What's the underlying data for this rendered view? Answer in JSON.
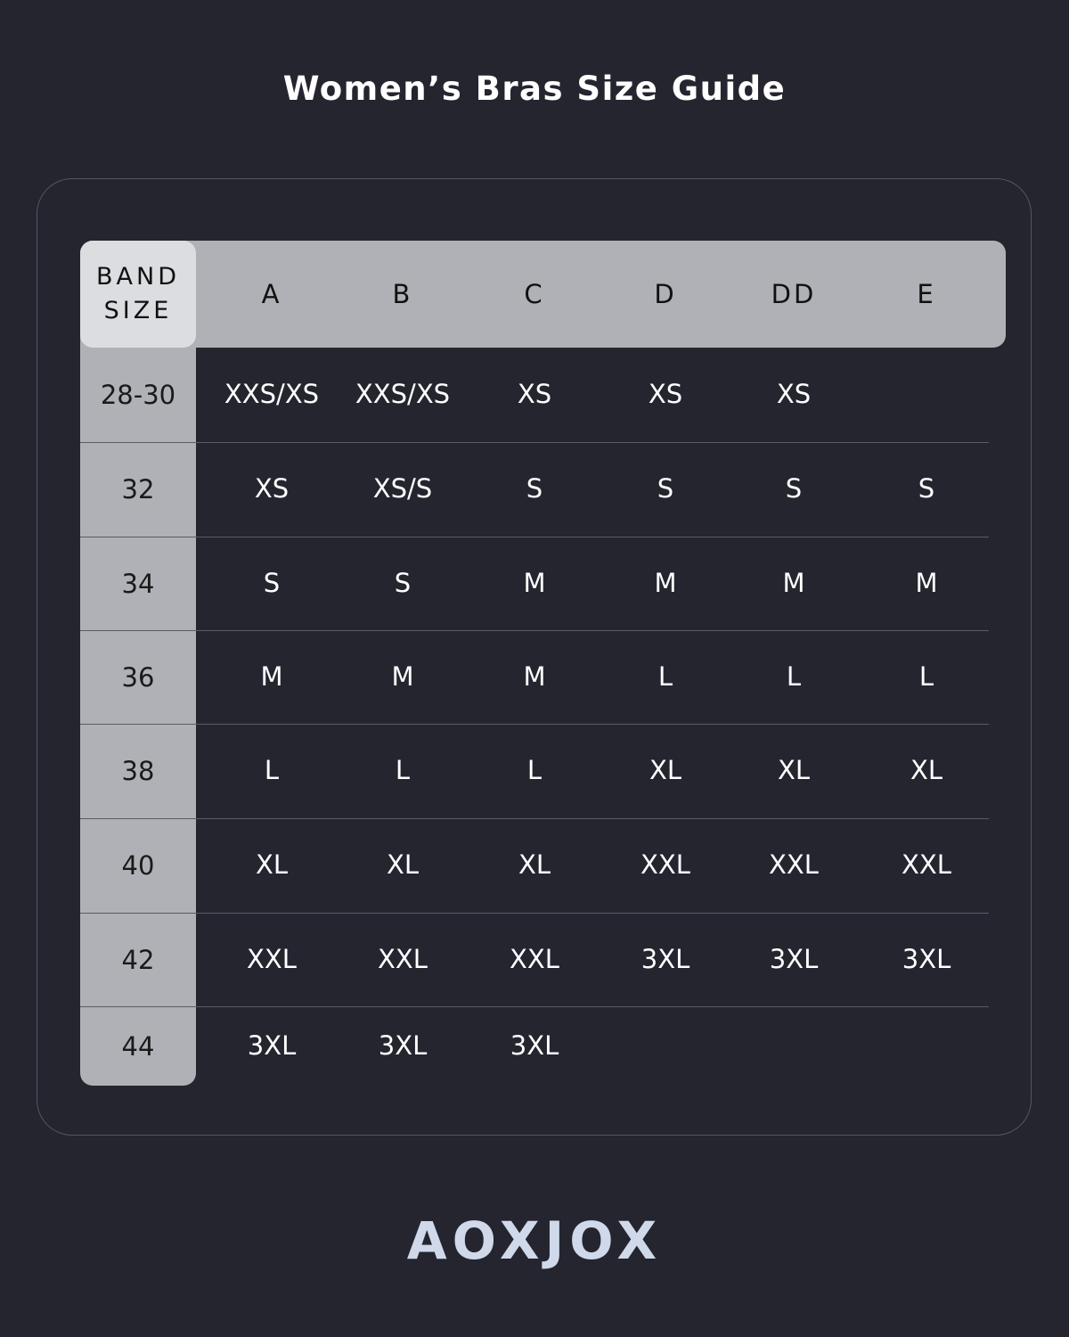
{
  "title": "Women’s Bras Size Guide",
  "table": {
    "band_header": [
      "BAND",
      "SIZE"
    ],
    "cup_headers": [
      "A",
      "B",
      "C",
      "D",
      "DD",
      "E"
    ],
    "rows": [
      {
        "band": "28-30",
        "cells": [
          "XXS/XS",
          "XXS/XS",
          "XS",
          "XS",
          "XS",
          ""
        ]
      },
      {
        "band": "32",
        "cells": [
          "XS",
          "XS/S",
          "S",
          "S",
          "S",
          "S"
        ]
      },
      {
        "band": "34",
        "cells": [
          "S",
          "S",
          "M",
          "M",
          "M",
          "M"
        ]
      },
      {
        "band": "36",
        "cells": [
          "M",
          "M",
          "M",
          "L",
          "L",
          "L"
        ]
      },
      {
        "band": "38",
        "cells": [
          "L",
          "L",
          "L",
          "XL",
          "XL",
          "XL"
        ]
      },
      {
        "band": "40",
        "cells": [
          "XL",
          "XL",
          "XL",
          "XXL",
          "XXL",
          "XXL"
        ]
      },
      {
        "band": "42",
        "cells": [
          "XXL",
          "XXL",
          "XXL",
          "3XL",
          "3XL",
          "3XL"
        ]
      },
      {
        "band": "44",
        "cells": [
          "3XL",
          "3XL",
          "3XL",
          "",
          "",
          ""
        ]
      }
    ]
  },
  "logo": "AOXJOX",
  "colors": {
    "background": "#24252f",
    "header": "#b0b1b6",
    "band_header": "#dcdde1",
    "logo": "#cfd9ea"
  }
}
